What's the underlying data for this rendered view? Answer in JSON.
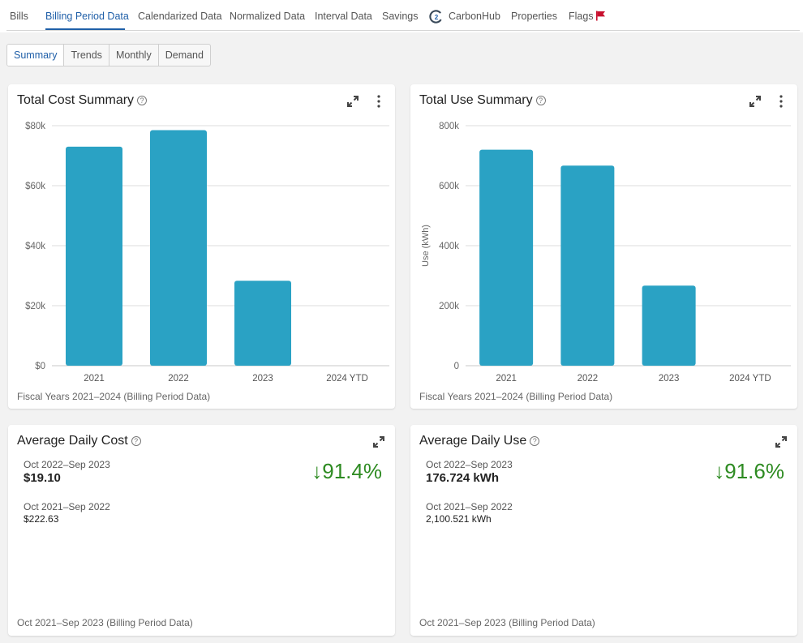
{
  "nav": {
    "tabs": [
      {
        "label": "Bills"
      },
      {
        "label": "Billing Period Data",
        "active": true
      },
      {
        "label": "Calendarized Data"
      },
      {
        "label": "Normalized Data"
      },
      {
        "label": "Interval Data"
      },
      {
        "label": "Savings"
      },
      {
        "label": "CarbonHub"
      },
      {
        "label": "Properties"
      },
      {
        "label": "Flags"
      }
    ]
  },
  "subtabs": [
    {
      "label": "Summary",
      "active": true
    },
    {
      "label": "Trends"
    },
    {
      "label": "Monthly"
    },
    {
      "label": "Demand"
    }
  ],
  "colors": {
    "accent": "#1f5fa8",
    "bar": "#2aa2c4",
    "positive": "#2e8b22",
    "flag": "#c8102e"
  },
  "icons": {
    "help": "help-circle-icon",
    "expand": "expand-icon",
    "menu": "more-vertical-icon",
    "flag": "flag-icon",
    "logo": "carbonhub-logo-icon"
  },
  "cost_card": {
    "title": "Total Cost Summary",
    "help_glyph": "?",
    "footer": "Fiscal Years 2021–2024 (Billing Period Data)"
  },
  "use_card": {
    "title": "Total Use Summary",
    "help_glyph": "?",
    "footer": "Fiscal Years 2021–2024 (Billing Period Data)"
  },
  "daily_cost_card": {
    "title": "Average Daily Cost",
    "help_glyph": "?",
    "current_range": "Oct 2022–Sep 2023",
    "current_value": "$19.10",
    "previous_range": "Oct 2021–Sep 2022",
    "previous_value": "$222.63",
    "change": "91.4%",
    "arrow": "↓",
    "footer": "Oct 2021–Sep 2023 (Billing Period Data)"
  },
  "daily_use_card": {
    "title": "Average Daily Use",
    "help_glyph": "?",
    "current_range": "Oct 2022–Sep 2023",
    "current_value": "176.724 kWh",
    "previous_range": "Oct 2021–Sep 2022",
    "previous_value": "2,100.521 kWh",
    "change": "91.6%",
    "arrow": "↓",
    "footer": "Oct 2021–Sep 2023 (Billing Period Data)"
  },
  "chart_data": [
    {
      "type": "bar",
      "title": "Total Cost Summary",
      "categories": [
        "2021",
        "2022",
        "2023",
        "2024 YTD"
      ],
      "values": [
        73000,
        78500,
        28300,
        0
      ],
      "yticks": [
        0,
        20000,
        40000,
        60000,
        80000
      ],
      "ytick_labels": [
        "$0",
        "$20k",
        "$40k",
        "$60k",
        "$80k"
      ],
      "ylim": [
        0,
        80000
      ],
      "ylabel": "",
      "grid": true,
      "legend": "none"
    },
    {
      "type": "bar",
      "title": "Total Use Summary",
      "categories": [
        "2021",
        "2022",
        "2023",
        "2024 YTD"
      ],
      "values": [
        720000,
        667000,
        267000,
        0
      ],
      "yticks": [
        0,
        200000,
        400000,
        600000,
        800000
      ],
      "ytick_labels": [
        "0",
        "200k",
        "400k",
        "600k",
        "800k"
      ],
      "ylim": [
        0,
        800000
      ],
      "ylabel": "Use (kWh)",
      "grid": true,
      "legend": "none"
    }
  ]
}
